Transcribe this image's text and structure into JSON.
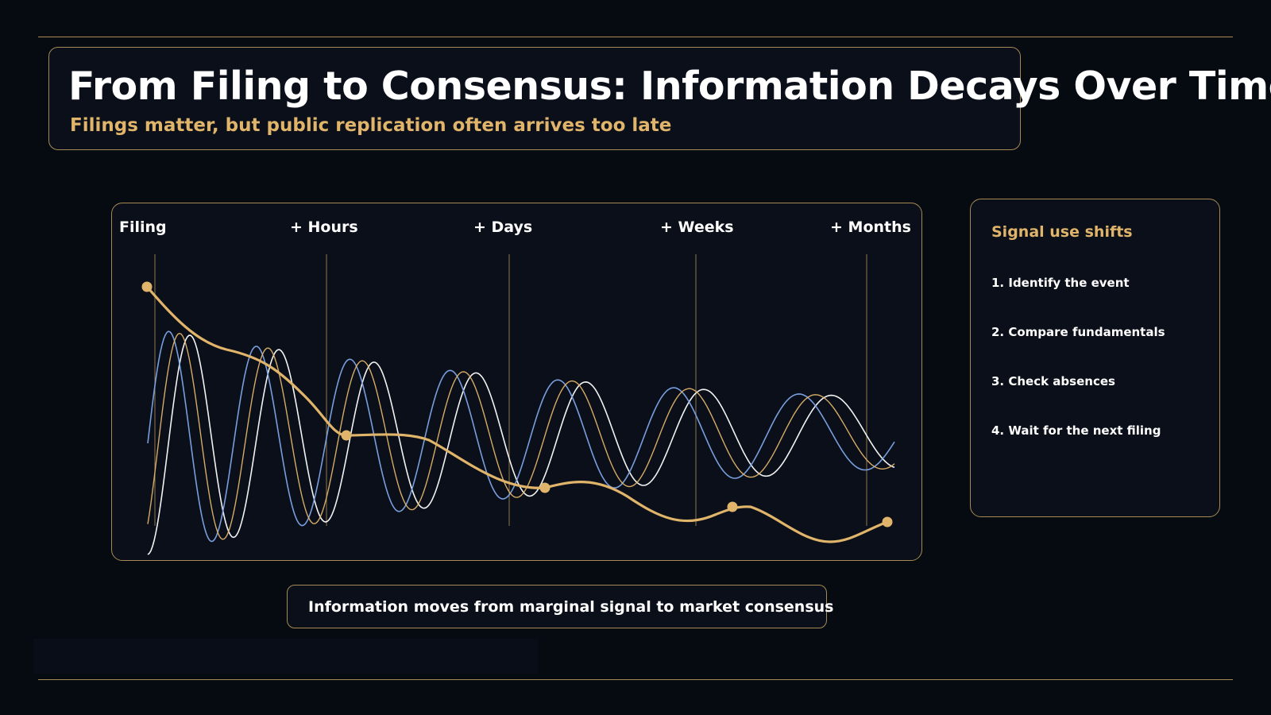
{
  "header": {
    "title": "From Filing to Consensus: Information Decays Over Time",
    "subtitle": "Filings matter, but public replication often arrives too late"
  },
  "timeline": {
    "stages": [
      "Filing",
      "+ Hours",
      "+ Days",
      "+ Weeks",
      "+ Months"
    ]
  },
  "side_panel": {
    "title": "Signal use shifts",
    "steps": [
      "1. Identify the event",
      "2. Compare fundamentals",
      "3. Check absences",
      "4. Wait for the next filing"
    ]
  },
  "caption": "Information moves from marginal signal to market consensus",
  "colors": {
    "background": "#060a11",
    "panel": "#0a0f19",
    "border": "#a58a55",
    "gold": "#e0b46a",
    "blue": "#7da6e8",
    "white": "#ffffff"
  }
}
